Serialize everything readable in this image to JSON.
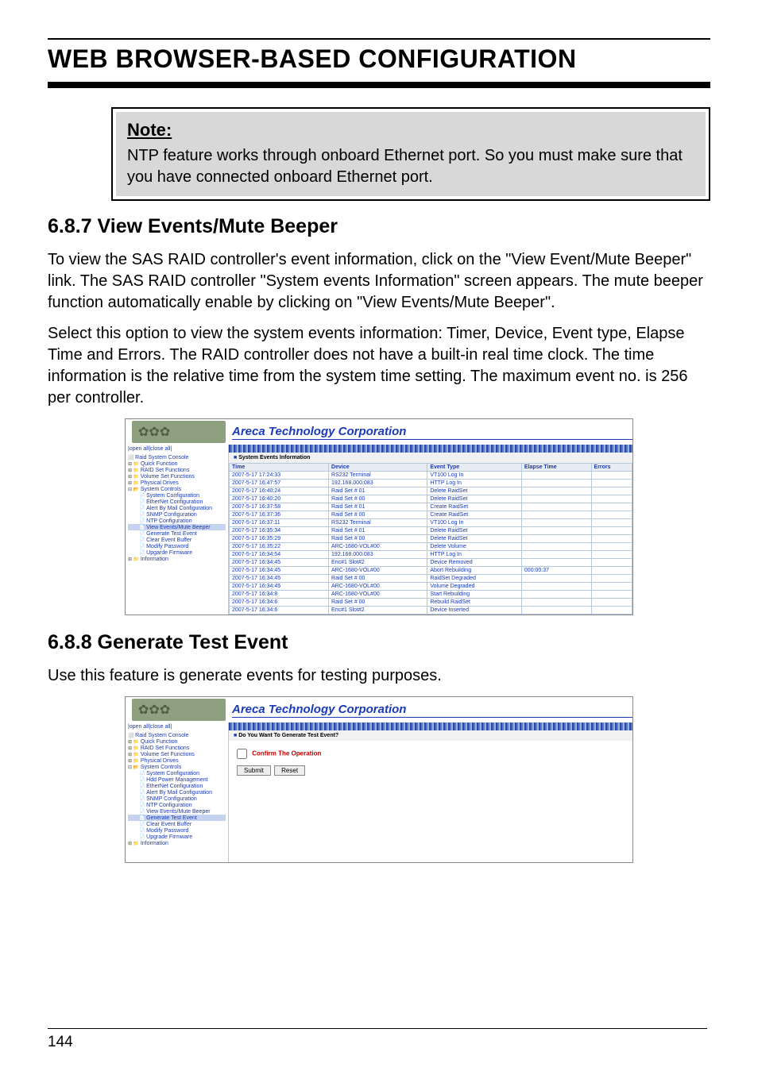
{
  "header": {
    "title": "WEB BROWSER-BASED CONFIGURATION"
  },
  "note": {
    "heading": "Note:",
    "text": "NTP feature works through onboard Ethernet port. So you must make sure that you have connected onboard Ethernet port."
  },
  "section1": {
    "heading": "6.8.7 View Events/Mute Beeper",
    "para1": "To view the SAS RAID controller's event information, click on the \"View Event/Mute Beeper\" link. The SAS RAID controller \"System events Information\" screen appears. The mute beeper function automatically enable by clicking on \"View Events/Mute Beeper\".",
    "para2": "Select this option to view the system events information: Timer, Device, Event type, Elapse Time and Errors. The RAID controller does not have a built-in real time clock. The time information is the relative time from the system time setting. The maximum event no. is 256 per controller."
  },
  "section2": {
    "heading": "6.8.8 Generate Test Event",
    "para1": "Use this feature is generate events for testing purposes."
  },
  "screenshot_common": {
    "company": "Areca Technology Corporation",
    "open_close": "|open all|close all|",
    "root": "Raid System Console",
    "folders": [
      "Quick Function",
      "RAID Set Functions",
      "Volume Set Functions",
      "Physical Drives"
    ],
    "sys_controls": "System Controls",
    "information": "Information"
  },
  "shot1": {
    "panel_title": "System Events Information",
    "leaves": [
      "System Configuration",
      "EtherNet Configuration",
      "Alert By Mail Configuration",
      "SNMP Configuration",
      "NTP Configuration",
      "View Events/Mute Beeper",
      "Generate Test Event",
      "Clear Event Buffer",
      "Modify Password",
      "Upgarde Firmware"
    ],
    "highlight_leaf": 5,
    "columns": [
      "Time",
      "Device",
      "Event Type",
      "Elapse Time",
      "Errors"
    ],
    "rows": [
      [
        "2007-5-17 17:24:33",
        "RS232 Terminal",
        "VT100 Log In",
        "",
        ""
      ],
      [
        "2007-5-17 16:47:57",
        "192.168.000.083",
        "HTTP Log In",
        "",
        ""
      ],
      [
        "2007-5-17 16:40:24",
        "Raid Set # 01",
        "Delete RaidSet",
        "",
        ""
      ],
      [
        "2007-5-17 16:40:20",
        "Raid Set # 00",
        "Delete RaidSet",
        "",
        ""
      ],
      [
        "2007-5-17 16:37:58",
        "Raid Set # 01",
        "Create RaidSet",
        "",
        ""
      ],
      [
        "2007-5-17 16:37:36",
        "Raid Set # 00",
        "Create RaidSet",
        "",
        ""
      ],
      [
        "2007-5-17 16:37:11",
        "RS232 Terminal",
        "VT100 Log In",
        "",
        ""
      ],
      [
        "2007-5-17 16:35:34",
        "Raid Set # 01",
        "Delete RaidSet",
        "",
        ""
      ],
      [
        "2007-5-17 16:35:29",
        "Raid Set # 00",
        "Delete RaidSet",
        "",
        ""
      ],
      [
        "2007-5-17 16:35:22",
        "ARC-1680-VOL#00",
        "Delete Volume",
        "",
        ""
      ],
      [
        "2007-5-17 16:34:54",
        "192.168.000.083",
        "HTTP Log In",
        "",
        ""
      ],
      [
        "2007-5-17 16:34:45",
        "Enc#1 Slot#2",
        "Device Removed",
        "",
        ""
      ],
      [
        "2007-5-17 16:34:45",
        "ARC-1680-VOL#00",
        "Abort Rebuilding",
        "000:00:37",
        ""
      ],
      [
        "2007-5-17 16:34:45",
        "Raid Set # 00",
        "RaidSet Degraded",
        "",
        ""
      ],
      [
        "2007-5-17 16:34:45",
        "ARC-1680-VOL#00",
        "Volume Degraded",
        "",
        ""
      ],
      [
        "2007-5-17 16:34:8",
        "ARC-1680-VOL#00",
        "Start Rebuilding",
        "",
        ""
      ],
      [
        "2007-5-17 16:34:6",
        "Raid Set # 00",
        "Rebuild RaidSet",
        "",
        ""
      ],
      [
        "2007-5-17 16:34:6",
        "Enc#1 Slot#2",
        "Device Inserted",
        "",
        ""
      ]
    ]
  },
  "shot2": {
    "panel_title": "Do You Want To Generate Test Event?",
    "leaves": [
      "System Configuration",
      "Hdd Power Management",
      "EtherNet Configuration",
      "Alert By Mail Configuration",
      "SNMP Configuration",
      "NTP Configuration",
      "View Events/Mute Beeper",
      "Generate Test Event",
      "Clear Event Buffer",
      "Modify Password",
      "Upgrade Firmware"
    ],
    "highlight_leaf": 7,
    "confirm": "Confirm The Operation",
    "submit": "Submit",
    "reset": "Reset"
  },
  "page_number": "144"
}
